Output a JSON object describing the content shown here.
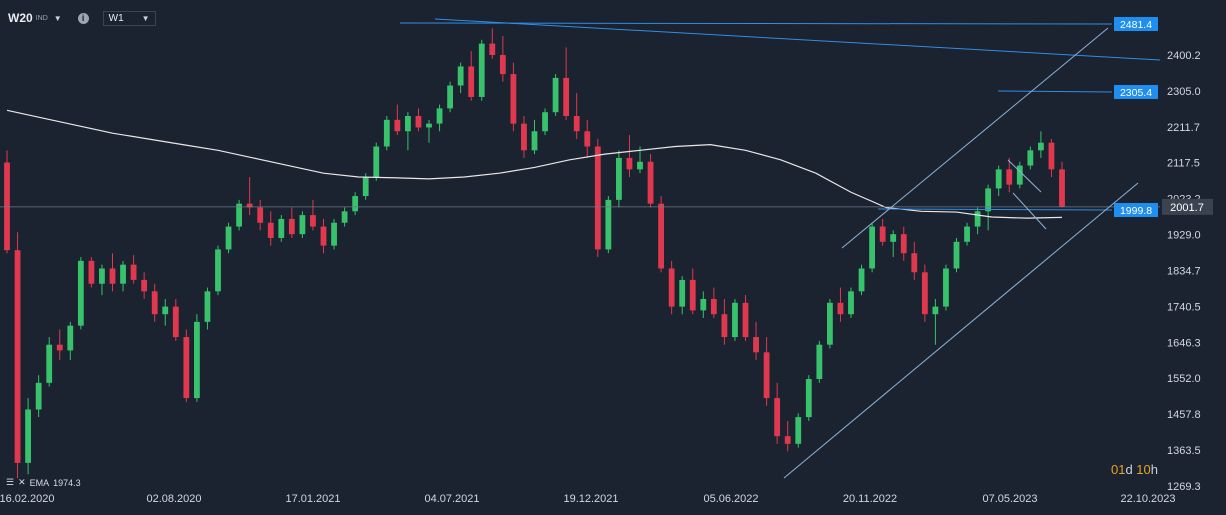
{
  "toolbar": {
    "symbol": "W20",
    "symbol_sub": "IND",
    "info_icon": "info-icon",
    "timeframe": "W1"
  },
  "indicator": {
    "label": "EMA",
    "value": "1974.3"
  },
  "countdown": {
    "days": "01",
    "d": "d",
    "hours": "10",
    "h": "h"
  },
  "colors": {
    "bg": "#1b2230",
    "up": "#37c26b",
    "down": "#e0394f",
    "trend": "#2f8ee6",
    "channel": "#8fb3d6",
    "ema": "#e8e8e8",
    "label_bg": "#1f8ef1"
  },
  "chart_data": {
    "type": "candlestick",
    "y_axis": {
      "ticks": [
        "2400.2",
        "2305.0",
        "2211.7",
        "2117.5",
        "2023.2",
        "1929.0",
        "1834.7",
        "1740.5",
        "1646.3",
        "1552.0",
        "1457.8",
        "1363.5",
        "1269.3"
      ],
      "min": 1269.3,
      "max": 2481.4
    },
    "x_axis": {
      "ticks": [
        "16.02.2020",
        "02.08.2020",
        "17.01.2021",
        "04.07.2021",
        "19.12.2021",
        "05.06.2022",
        "20.11.2022",
        "07.05.2023",
        "22.10.2023"
      ]
    },
    "price_labels": [
      {
        "value": "2481.4",
        "type": "level"
      },
      {
        "value": "2305.4",
        "type": "level"
      },
      {
        "value": "1999.8",
        "type": "level"
      },
      {
        "value": "2001.7",
        "type": "current"
      }
    ],
    "series": [
      {
        "name": "EMA",
        "values": [
          2255,
          2235,
          2215,
          2195,
          2180,
          2165,
          2150,
          2130,
          2110,
          2090,
          2080,
          2078,
          2075,
          2080,
          2090,
          2105,
          2125,
          2140,
          2150,
          2160,
          2165,
          2150,
          2125,
          2090,
          2040,
          2000,
          1990,
          1988,
          1975,
          1972,
          1974
        ]
      }
    ],
    "candles_ohlc": [
      [
        2118,
        2150,
        1880,
        1888
      ],
      [
        1888,
        1935,
        1290,
        1330
      ],
      [
        1330,
        1500,
        1300,
        1470
      ],
      [
        1470,
        1560,
        1450,
        1540
      ],
      [
        1540,
        1660,
        1530,
        1640
      ],
      [
        1640,
        1680,
        1600,
        1625
      ],
      [
        1625,
        1700,
        1600,
        1690
      ],
      [
        1690,
        1870,
        1680,
        1860
      ],
      [
        1860,
        1870,
        1790,
        1800
      ],
      [
        1800,
        1850,
        1770,
        1840
      ],
      [
        1840,
        1880,
        1780,
        1800
      ],
      [
        1800,
        1860,
        1780,
        1850
      ],
      [
        1850,
        1875,
        1800,
        1810
      ],
      [
        1810,
        1830,
        1760,
        1780
      ],
      [
        1780,
        1800,
        1700,
        1720
      ],
      [
        1720,
        1760,
        1690,
        1740
      ],
      [
        1740,
        1760,
        1650,
        1660
      ],
      [
        1660,
        1680,
        1490,
        1500
      ],
      [
        1500,
        1720,
        1490,
        1700
      ],
      [
        1700,
        1790,
        1680,
        1780
      ],
      [
        1780,
        1900,
        1770,
        1890
      ],
      [
        1890,
        1960,
        1880,
        1950
      ],
      [
        1950,
        2020,
        1940,
        2010
      ],
      [
        2010,
        2080,
        1980,
        2000
      ],
      [
        2000,
        2020,
        1940,
        1960
      ],
      [
        1960,
        1990,
        1900,
        1920
      ],
      [
        1920,
        1980,
        1910,
        1970
      ],
      [
        1970,
        2000,
        1920,
        1930
      ],
      [
        1930,
        1990,
        1920,
        1980
      ],
      [
        1980,
        2020,
        1940,
        1950
      ],
      [
        1950,
        1970,
        1880,
        1900
      ],
      [
        1900,
        1970,
        1890,
        1960
      ],
      [
        1960,
        2000,
        1950,
        1990
      ],
      [
        1990,
        2040,
        1980,
        2030
      ],
      [
        2030,
        2090,
        2020,
        2080
      ],
      [
        2080,
        2170,
        2070,
        2160
      ],
      [
        2160,
        2240,
        2150,
        2230
      ],
      [
        2230,
        2270,
        2190,
        2200
      ],
      [
        2200,
        2250,
        2150,
        2240
      ],
      [
        2240,
        2260,
        2200,
        2210
      ],
      [
        2210,
        2230,
        2170,
        2220
      ],
      [
        2220,
        2270,
        2200,
        2260
      ],
      [
        2260,
        2330,
        2250,
        2320
      ],
      [
        2320,
        2380,
        2300,
        2370
      ],
      [
        2370,
        2410,
        2280,
        2290
      ],
      [
        2290,
        2440,
        2280,
        2430
      ],
      [
        2430,
        2470,
        2390,
        2400
      ],
      [
        2400,
        2450,
        2330,
        2350
      ],
      [
        2350,
        2380,
        2200,
        2220
      ],
      [
        2220,
        2240,
        2130,
        2150
      ],
      [
        2150,
        2230,
        2140,
        2200
      ],
      [
        2200,
        2260,
        2190,
        2250
      ],
      [
        2250,
        2350,
        2240,
        2340
      ],
      [
        2340,
        2420,
        2230,
        2240
      ],
      [
        2240,
        2300,
        2180,
        2200
      ],
      [
        2200,
        2230,
        2130,
        2160
      ],
      [
        2160,
        2180,
        1870,
        1890
      ],
      [
        1890,
        2030,
        1880,
        2020
      ],
      [
        2020,
        2150,
        2000,
        2130
      ],
      [
        2130,
        2190,
        2080,
        2100
      ],
      [
        2100,
        2160,
        2090,
        2120
      ],
      [
        2120,
        2140,
        2000,
        2010
      ],
      [
        2010,
        2030,
        1830,
        1840
      ],
      [
        1840,
        1860,
        1720,
        1740
      ],
      [
        1740,
        1820,
        1720,
        1810
      ],
      [
        1810,
        1840,
        1720,
        1730
      ],
      [
        1730,
        1780,
        1710,
        1760
      ],
      [
        1760,
        1790,
        1710,
        1720
      ],
      [
        1720,
        1760,
        1640,
        1660
      ],
      [
        1660,
        1760,
        1650,
        1750
      ],
      [
        1750,
        1770,
        1650,
        1660
      ],
      [
        1660,
        1700,
        1600,
        1620
      ],
      [
        1620,
        1660,
        1480,
        1500
      ],
      [
        1500,
        1540,
        1380,
        1400
      ],
      [
        1400,
        1440,
        1360,
        1380
      ],
      [
        1380,
        1460,
        1370,
        1450
      ],
      [
        1450,
        1560,
        1440,
        1550
      ],
      [
        1550,
        1650,
        1540,
        1640
      ],
      [
        1640,
        1760,
        1630,
        1750
      ],
      [
        1750,
        1790,
        1700,
        1720
      ],
      [
        1720,
        1790,
        1710,
        1780
      ],
      [
        1780,
        1850,
        1770,
        1840
      ],
      [
        1840,
        1960,
        1830,
        1950
      ],
      [
        1950,
        1970,
        1900,
        1910
      ],
      [
        1910,
        1940,
        1870,
        1930
      ],
      [
        1930,
        1950,
        1860,
        1880
      ],
      [
        1880,
        1910,
        1810,
        1830
      ],
      [
        1830,
        1850,
        1700,
        1720
      ],
      [
        1720,
        1760,
        1640,
        1740
      ],
      [
        1740,
        1850,
        1730,
        1840
      ],
      [
        1840,
        1920,
        1830,
        1910
      ],
      [
        1910,
        1960,
        1900,
        1950
      ],
      [
        1950,
        2000,
        1930,
        1990
      ],
      [
        1990,
        2060,
        1940,
        2050
      ],
      [
        2050,
        2110,
        2030,
        2100
      ],
      [
        2100,
        2130,
        2040,
        2060
      ],
      [
        2060,
        2120,
        2050,
        2110
      ],
      [
        2110,
        2160,
        2100,
        2150
      ],
      [
        2150,
        2200,
        2130,
        2170
      ],
      [
        2170,
        2180,
        2080,
        2100
      ],
      [
        2100,
        2120,
        2000,
        2001.7
      ]
    ]
  }
}
